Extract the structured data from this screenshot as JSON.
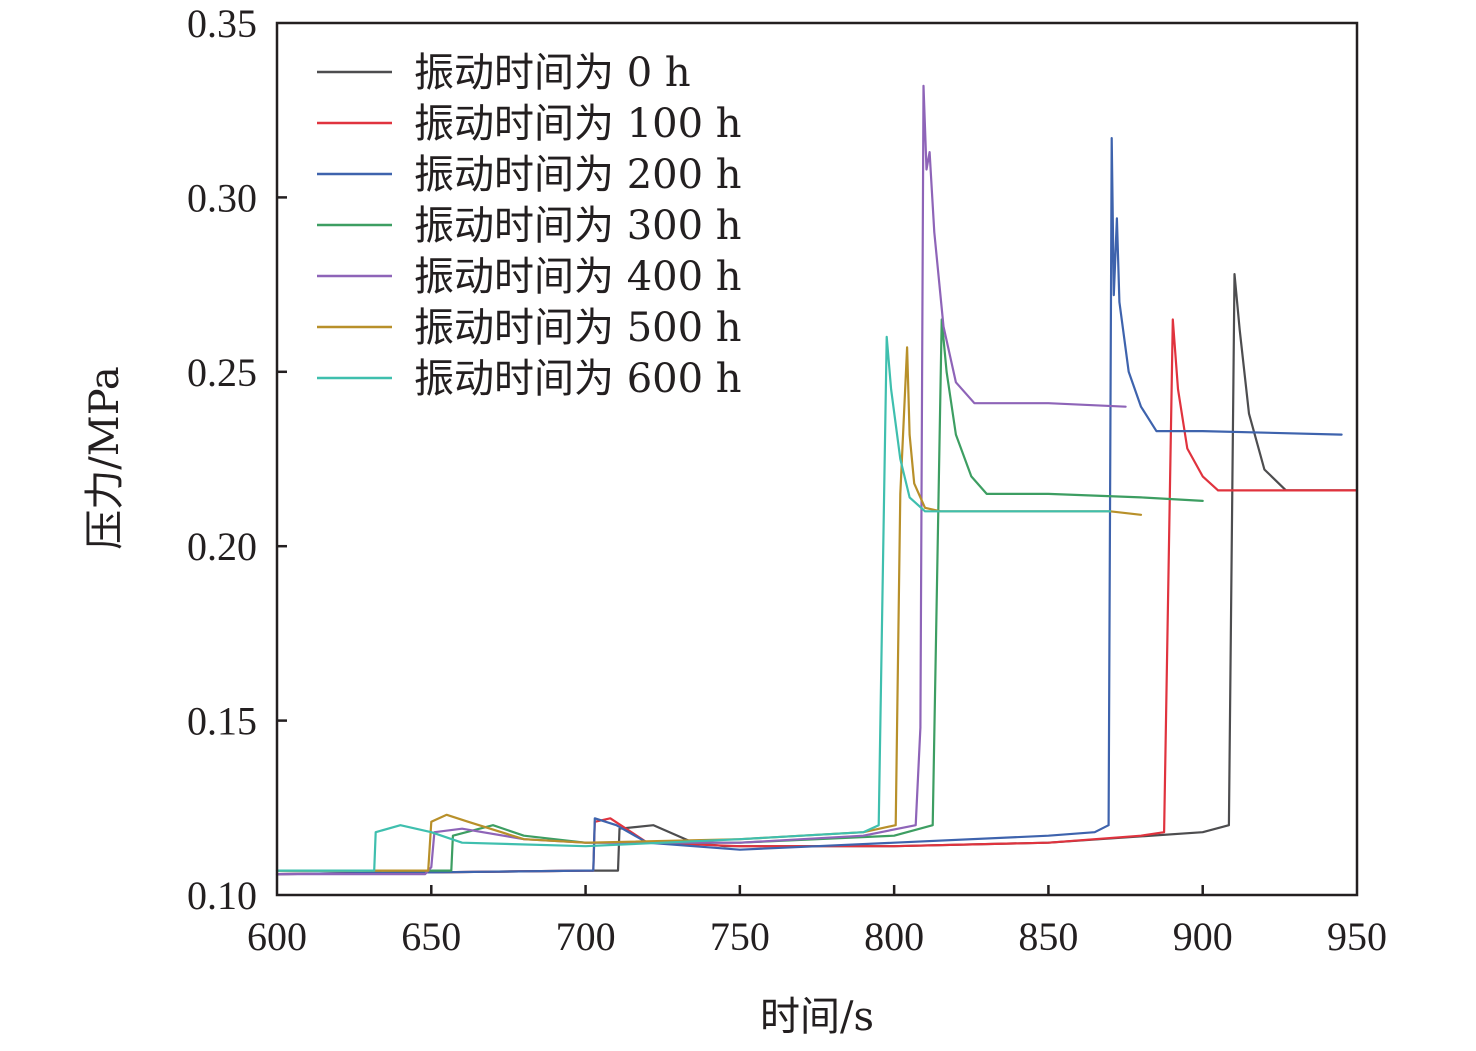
{
  "chart_data": {
    "type": "line",
    "xlabel": "时间/s",
    "ylabel": "压力/MPa",
    "xlim": [
      600,
      950
    ],
    "ylim": [
      0.1,
      0.35
    ],
    "xticks": [
      600,
      650,
      700,
      750,
      800,
      850,
      900,
      950
    ],
    "yticks": [
      0.1,
      0.15,
      0.2,
      0.25,
      0.3,
      0.35
    ],
    "xtick_labels": [
      "600",
      "650",
      "700",
      "750",
      "800",
      "850",
      "900",
      "950"
    ],
    "ytick_labels": [
      "0.10",
      "0.15",
      "0.20",
      "0.25",
      "0.30",
      "0.35"
    ],
    "grid": false,
    "legend_position": "top-left",
    "series": [
      {
        "name": "振动时间为 0 h",
        "color": "#4d4d4f",
        "x": [
          600,
          700,
          710.5,
          711,
          722,
          735,
          745,
          800,
          850,
          900,
          908.5,
          910.3,
          912,
          915,
          920,
          927,
          935,
          950
        ],
        "y": [
          0.106,
          0.107,
          0.107,
          0.119,
          0.12,
          0.115,
          0.114,
          0.114,
          0.115,
          0.118,
          0.12,
          0.278,
          0.262,
          0.238,
          0.222,
          0.216,
          0.216,
          0.216
        ]
      },
      {
        "name": "振动时间为 100 h",
        "color": "#e0333e",
        "x": [
          600,
          700,
          702.5,
          703,
          708,
          720,
          750,
          800,
          850,
          880,
          887.5,
          890.3,
          892,
          895,
          900,
          905,
          920,
          950
        ],
        "y": [
          0.106,
          0.107,
          0.107,
          0.121,
          0.122,
          0.115,
          0.114,
          0.114,
          0.115,
          0.117,
          0.118,
          0.265,
          0.245,
          0.228,
          0.22,
          0.216,
          0.216,
          0.216
        ]
      },
      {
        "name": "振动时间为 200 h",
        "color": "#3e63ad",
        "x": [
          600,
          700,
          702.5,
          703,
          710,
          720,
          750,
          800,
          850,
          865,
          869.5,
          870.5,
          871.2,
          872.2,
          873,
          876,
          880,
          885,
          900,
          945
        ],
        "y": [
          0.106,
          0.107,
          0.107,
          0.122,
          0.12,
          0.115,
          0.113,
          0.115,
          0.117,
          0.118,
          0.12,
          0.317,
          0.272,
          0.294,
          0.27,
          0.25,
          0.24,
          0.233,
          0.233,
          0.232
        ]
      },
      {
        "name": "振动时间为 300 h",
        "color": "#3d9e62",
        "x": [
          600,
          655,
          656.5,
          657,
          670,
          680,
          700,
          750,
          800,
          812.5,
          815.4,
          817,
          820,
          825,
          830,
          850,
          880,
          900
        ],
        "y": [
          0.107,
          0.107,
          0.107,
          0.117,
          0.12,
          0.117,
          0.115,
          0.115,
          0.117,
          0.12,
          0.265,
          0.25,
          0.232,
          0.22,
          0.215,
          0.215,
          0.214,
          0.213
        ]
      },
      {
        "name": "振动时间为 400 h",
        "color": "#8e64b8",
        "x": [
          600,
          648,
          650,
          651,
          660,
          680,
          700,
          750,
          790,
          807,
          808.5,
          809.5,
          810.5,
          811.5,
          813,
          816,
          820,
          826,
          850,
          875
        ],
        "y": [
          0.106,
          0.106,
          0.108,
          0.118,
          0.119,
          0.116,
          0.115,
          0.115,
          0.117,
          0.12,
          0.148,
          0.332,
          0.308,
          0.313,
          0.29,
          0.263,
          0.247,
          0.241,
          0.241,
          0.24
        ]
      },
      {
        "name": "振动时间为 500 h",
        "color": "#b8902a",
        "x": [
          600,
          649,
          650,
          655,
          662,
          680,
          700,
          750,
          790,
          800.5,
          802,
          804.2,
          805,
          806.5,
          810,
          815,
          850,
          870,
          880
        ],
        "y": [
          0.107,
          0.107,
          0.121,
          0.123,
          0.121,
          0.116,
          0.115,
          0.116,
          0.118,
          0.12,
          0.215,
          0.257,
          0.232,
          0.218,
          0.211,
          0.21,
          0.21,
          0.21,
          0.209
        ]
      },
      {
        "name": "振动时间为 600 h",
        "color": "#3fbfae",
        "x": [
          600,
          630,
          631.5,
          632,
          640,
          650,
          660,
          700,
          750,
          790,
          795,
          797.6,
          799,
          802,
          805,
          810,
          840,
          870
        ],
        "y": [
          0.107,
          0.107,
          0.107,
          0.118,
          0.12,
          0.118,
          0.115,
          0.114,
          0.116,
          0.118,
          0.12,
          0.26,
          0.245,
          0.225,
          0.214,
          0.21,
          0.21,
          0.21
        ]
      }
    ]
  }
}
